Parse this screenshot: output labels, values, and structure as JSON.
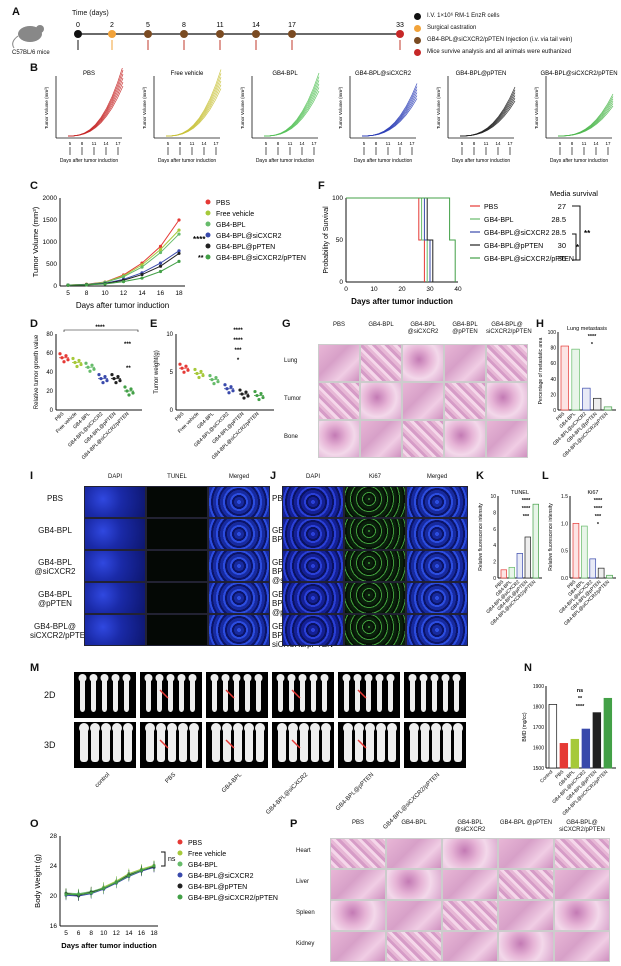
{
  "panels": {
    "A": "A",
    "B": "B",
    "C": "C",
    "D": "D",
    "E": "E",
    "F": "F",
    "G": "G",
    "H": "H",
    "I": "I",
    "J": "J",
    "K": "K",
    "L": "L",
    "M": "M",
    "N": "N",
    "O": "O",
    "P": "P"
  },
  "timeline": {
    "title": "Time (days)",
    "mouse_label": "C57BL/6 mice",
    "days": [
      "0",
      "2",
      "5",
      "8",
      "11",
      "14",
      "17",
      "33"
    ],
    "legend": [
      {
        "text": "I.V. 1×10⁶ RM-1 EnzR cells",
        "color": "#111111"
      },
      {
        "text": "Surgical castration",
        "color": "#f2a33a"
      },
      {
        "text": "GB4-BPL@siCXCR2/pPTEN Injection (i.v. via tail vein)",
        "color": "#7a4b22"
      },
      {
        "text": "Mice survive analysis and all animals were euthanized",
        "color": "#c62828"
      }
    ]
  },
  "growth_small": {
    "titles": [
      "PBS",
      "Free vehicle",
      "GB4-BPL",
      "GB4-BPL@siCXCR2",
      "GB4-BPL@pPTEN",
      "GB4-BPL@siCXCR2/pPTEN"
    ],
    "colors": [
      "#c62828",
      "#c9c23a",
      "#56c25a",
      "#2e3fb7",
      "#222222",
      "#4fb84f"
    ],
    "ylabel": "Tumor Volume (mm³)",
    "xlabel": "Days after tumor induction",
    "ticks": [
      "5",
      "8",
      "11",
      "14",
      "17"
    ]
  },
  "chart_data": [
    {
      "type": "line",
      "panel": "C",
      "xlabel": "Days after tumor induction",
      "ylabel": "Tumor Volume (mm³)",
      "x": [
        5,
        8,
        10,
        12,
        14,
        16,
        18
      ],
      "ylim": [
        0,
        2000
      ],
      "yticks": [
        "0",
        "500",
        "1000",
        "1500",
        "2000"
      ],
      "series": [
        {
          "name": "PBS",
          "color": "#e53935",
          "values": [
            20,
            40,
            90,
            250,
            520,
            900,
            1500
          ]
        },
        {
          "name": "Free vehicle",
          "color": "#a6c93a",
          "values": [
            20,
            38,
            85,
            230,
            480,
            830,
            1270
          ]
        },
        {
          "name": "GB4-BPL",
          "color": "#66bb6a",
          "values": [
            20,
            35,
            80,
            210,
            430,
            760,
            1180
          ]
        },
        {
          "name": "GB4-BPL@siCXCR2",
          "color": "#3949ab",
          "values": [
            20,
            30,
            60,
            150,
            300,
            520,
            800
          ]
        },
        {
          "name": "GB4-BPL@pPTEN",
          "color": "#212121",
          "values": [
            20,
            28,
            55,
            130,
            260,
            450,
            740
          ]
        },
        {
          "name": "GB4-BPL@siCXCR2/pPTEN",
          "color": "#43a047",
          "values": [
            20,
            25,
            45,
            100,
            180,
            330,
            560
          ]
        }
      ],
      "annotations": [
        "****",
        "**"
      ]
    },
    {
      "type": "line",
      "panel": "F",
      "xlabel": "Days after tumor induction",
      "ylabel": "Probability of Survival",
      "xticks": [
        "0",
        "10",
        "20",
        "30",
        "40"
      ],
      "yticks": [
        "0",
        "50",
        "100"
      ],
      "media_survival_title": "Media survival",
      "series": [
        {
          "name": "PBS",
          "color": "#e53935",
          "median": "27"
        },
        {
          "name": "GB4-BPL",
          "color": "#66bb6a",
          "median": "28.5"
        },
        {
          "name": "GB4-BPL@siCXCR2",
          "color": "#3949ab",
          "median": "28.5"
        },
        {
          "name": "GB4-BPL@pPTEN",
          "color": "#212121",
          "median": "30"
        },
        {
          "name": "GB4-BPL@siCXCR2/pPTEN",
          "color": "#43a047",
          "median": "36"
        }
      ],
      "annotations": [
        "*",
        "**"
      ]
    },
    {
      "type": "scatter",
      "panel": "D",
      "ylabel": "Relative tumor growth value",
      "categories": [
        "PBS",
        "Free vehicle",
        "GB4-BPL",
        "GB4-BPL@siCXCR2",
        "GB4-BPL@pPTEN",
        "GB4-BPL@siCXCR2/pPTEN"
      ],
      "values": [
        55,
        50,
        45,
        33,
        33,
        20
      ],
      "ylim": [
        0,
        80
      ],
      "yticks": [
        "0",
        "20",
        "40",
        "60",
        "80"
      ],
      "annotations": [
        "****",
        "***",
        "**"
      ]
    },
    {
      "type": "scatter",
      "panel": "E",
      "ylabel": "Tumor weight(g)",
      "categories": [
        "PBS",
        "Free vehicle",
        "GB4-BPL",
        "GB4-BPL@siCXCR2",
        "GB4-BPL@pPTEN",
        "GB4-BPL@siCXCR2/pPTEN"
      ],
      "values": [
        5.5,
        4.8,
        4.0,
        2.8,
        2.1,
        1.9
      ],
      "ylim": [
        0,
        10
      ],
      "yticks": [
        "0",
        "5",
        "10"
      ],
      "annotations": [
        "****",
        "****",
        "***",
        "*"
      ]
    },
    {
      "type": "bar",
      "panel": "H",
      "title": "Lung metastasis",
      "ylabel": "Percentage of metastatic area",
      "categories": [
        "PBS",
        "GB4-BPL",
        "GB4-BPL@siCXCR2",
        "GB4-BPL@pPTEN",
        "GB4-BPL@siCXCR2/pPTEN"
      ],
      "values": [
        82,
        78,
        28,
        15,
        4
      ],
      "ylim": [
        0,
        100
      ],
      "yticks": [
        "0",
        "20",
        "40",
        "60",
        "80",
        "100"
      ],
      "annotations": [
        "****",
        "*"
      ]
    },
    {
      "type": "bar",
      "panel": "K",
      "title": "TUNEL",
      "ylabel": "Relative fluorescence intensity",
      "categories": [
        "PBS",
        "GB4-BPL",
        "GB4-BPL@siCXCR2",
        "GB4-BPL@pPTEN",
        "GB4-BPL@siCXCR2/pPTEN"
      ],
      "values": [
        1.0,
        1.3,
        3.0,
        5.0,
        9.0
      ],
      "ylim": [
        0,
        10
      ],
      "yticks": [
        "0",
        "2",
        "4",
        "6",
        "8",
        "10"
      ],
      "annotations": [
        "****",
        "****",
        "***"
      ]
    },
    {
      "type": "bar",
      "panel": "L",
      "title": "Ki67",
      "ylabel": "Relative fluorescence intensity",
      "categories": [
        "PBS",
        "GB4-BPL",
        "GB4-BPL@siCXCR2",
        "GB4-BPL@pPTEN",
        "GB4-BPL@siCXCR2/pPTEN"
      ],
      "values": [
        1.0,
        0.95,
        0.35,
        0.18,
        0.05
      ],
      "ylim": [
        0,
        1.5
      ],
      "yticks": [
        "0.0",
        "0.5",
        "1.0",
        "1.5"
      ],
      "annotations": [
        "****",
        "****",
        "***",
        "*"
      ]
    },
    {
      "type": "bar",
      "panel": "N",
      "ylabel": "BMD (mg/cc)",
      "categories": [
        "Control",
        "PBS",
        "GB4-BPL",
        "GB4-BPL@siCXCR2",
        "GB4-BPL@pPTEN",
        "GB4-BPL@siCXCR2/pPTEN"
      ],
      "values": [
        1810,
        1620,
        1640,
        1690,
        1770,
        1840
      ],
      "colors": [
        "#ffffff",
        "#e53935",
        "#a6c93a",
        "#3949ab",
        "#212121",
        "#43a047"
      ],
      "ylim": [
        1500,
        1900
      ],
      "yticks": [
        "1500",
        "1600",
        "1700",
        "1800",
        "1900"
      ],
      "annotations": [
        "ns",
        "**",
        "****"
      ]
    },
    {
      "type": "line",
      "panel": "O",
      "xlabel": "Days after tumor induction",
      "ylabel": "Body Weight (g)",
      "x": [
        5,
        6,
        8,
        10,
        12,
        14,
        16,
        18
      ],
      "ylim": [
        16,
        28
      ],
      "yticks": [
        "16",
        "20",
        "24",
        "28"
      ],
      "series": [
        {
          "name": "PBS",
          "color": "#e53935",
          "values": [
            20.3,
            20.2,
            20.5,
            21.0,
            21.8,
            22.8,
            23.4,
            24.0
          ]
        },
        {
          "name": "Free vehicle",
          "color": "#a6c93a",
          "values": [
            20.2,
            20.0,
            20.4,
            21.2,
            22.0,
            23.0,
            23.6,
            24.1
          ]
        },
        {
          "name": "GB4-BPL",
          "color": "#66bb6a",
          "values": [
            20.4,
            20.3,
            20.6,
            21.1,
            21.9,
            22.9,
            23.5,
            24.0
          ]
        },
        {
          "name": "GB4-BPL@siCXCR2",
          "color": "#3949ab",
          "values": [
            20.1,
            20.0,
            20.3,
            20.9,
            21.7,
            22.6,
            23.3,
            23.8
          ]
        },
        {
          "name": "GB4-BPL@pPTEN",
          "color": "#212121",
          "values": [
            20.3,
            20.1,
            20.5,
            21.0,
            21.8,
            22.8,
            23.4,
            23.9
          ]
        },
        {
          "name": "GB4-BPL@siCXCR2/pPTEN",
          "color": "#43a047",
          "values": [
            20.2,
            20.2,
            20.4,
            21.0,
            21.8,
            22.7,
            23.4,
            24.0
          ]
        }
      ],
      "annotations": [
        "ns"
      ]
    }
  ],
  "histology_G": {
    "columns": [
      "PBS",
      "GB4-BPL",
      "GB4-BPL @siCXCR2",
      "GB4-BPL @pPTEN",
      "GB4-BPL@ siCXCR2/pPTEN"
    ],
    "rows": [
      "Lung",
      "Tumor",
      "Bone"
    ]
  },
  "fluor_IJ": {
    "rows": [
      "PBS",
      "GB4-BPL",
      "GB4-BPL @siCXCR2",
      "GB4-BPL @pPTEN",
      "GB4-BPL@ siCXCR2/pPTEN"
    ],
    "I_cols": [
      "DAPI",
      "TUNEL",
      "Merged"
    ],
    "J_cols": [
      "DAPI",
      "Ki67",
      "Merged"
    ]
  },
  "bones_M": {
    "rows": [
      "2D",
      "3D"
    ],
    "groups": [
      "control",
      "PBS",
      "GB4-BPL",
      "GB4-BPL@siCXCR2",
      "GB4-BPL@pPTEN",
      "GB4-BPL@siCXCR2/pPTEN"
    ]
  },
  "histology_P": {
    "columns": [
      "PBS",
      "GB4-BPL",
      "GB4-BPL @siCXCR2",
      "GB4-BPL @pPTEN",
      "GB4-BPL@ siCXCR2/pPTEN"
    ],
    "rows": [
      "Heart",
      "Liver",
      "Spleen",
      "Kidney"
    ]
  }
}
